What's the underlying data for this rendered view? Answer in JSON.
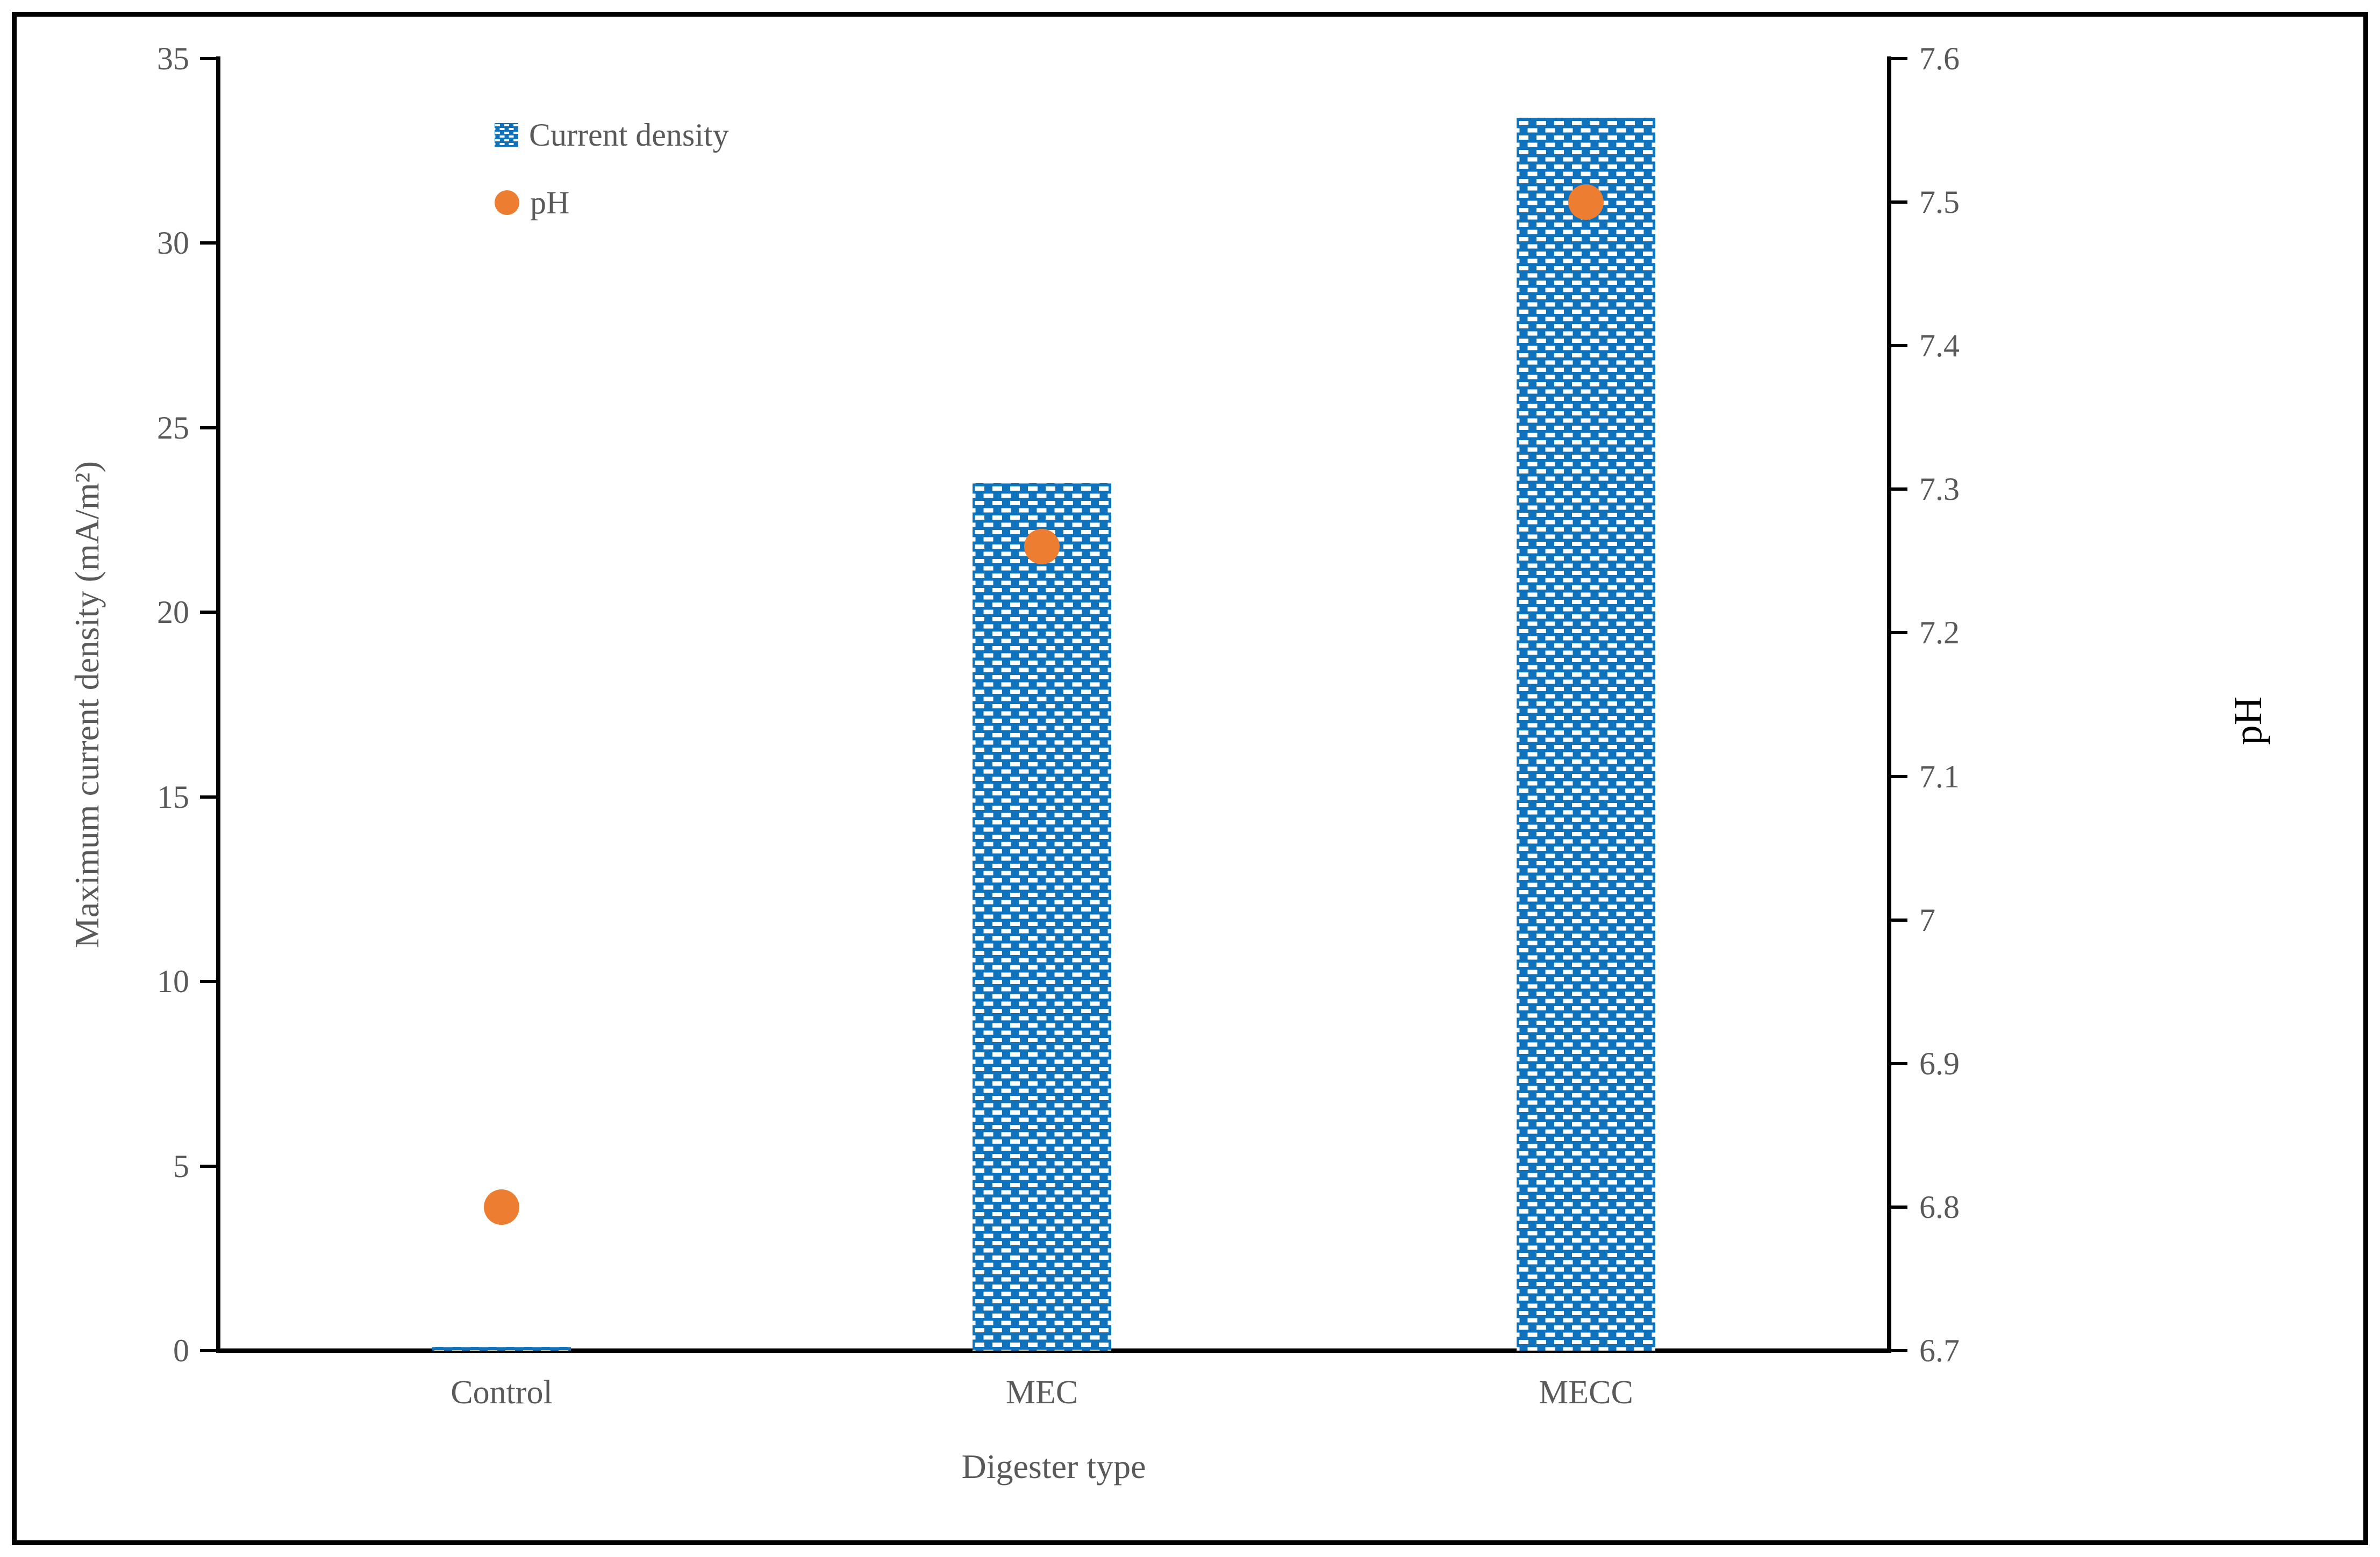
{
  "chart_data": {
    "type": "bar",
    "subtype": "combo-bar-scatter-dual-axis",
    "categories": [
      "Control",
      "MEC",
      "MECC"
    ],
    "series": [
      {
        "name": "Current density",
        "chart_type": "bar",
        "axis": "left",
        "values": [
          0.1,
          23.5,
          33.4
        ],
        "color": "#0F72BC",
        "pattern": "blue-with-white-dash-checker"
      },
      {
        "name": "pH",
        "chart_type": "scatter",
        "axis": "right",
        "values": [
          6.8,
          7.26,
          7.5
        ],
        "color": "#ED7D31"
      }
    ],
    "left_axis": {
      "label": "Maximum current density (mA/m²)",
      "min": 0,
      "max": 35,
      "step": 5,
      "tick_labels": [
        "0",
        "5",
        "10",
        "15",
        "20",
        "25",
        "30",
        "35"
      ]
    },
    "right_axis": {
      "label": "pH",
      "min": 6.7,
      "max": 7.6,
      "step": 0.1,
      "tick_labels": [
        "6.7",
        "6.8",
        "6.9",
        "7",
        "7.1",
        "7.2",
        "7.3",
        "7.4",
        "7.5",
        "7.6"
      ]
    },
    "x_axis": {
      "label": "Digester type",
      "labels": [
        "Control",
        "MEC",
        "MECC"
      ]
    },
    "legend": {
      "position": "inside-top-left",
      "markers": [
        "patterned-square",
        "filled-circle"
      ]
    },
    "grid": "off",
    "colors": {
      "bar_blue": "#0F72BC",
      "point_orange": "#ED7D31",
      "text_gray": "#595959",
      "axis_black": "#000000"
    }
  }
}
